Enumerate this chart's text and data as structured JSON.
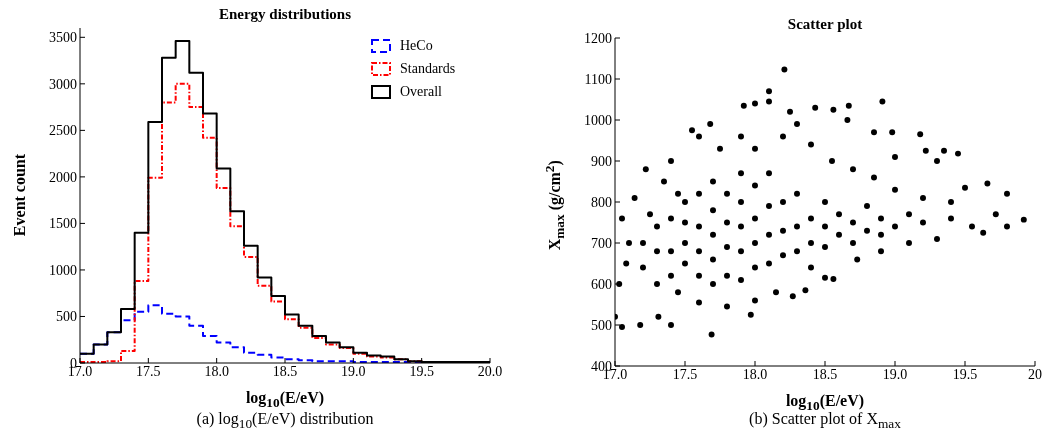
{
  "chart_data": [
    {
      "type": "histogram",
      "title": "Energy distributions",
      "xlabel": "log$_{10}$(E/eV)",
      "ylabel": "Event count",
      "bins": [
        17.0,
        17.1,
        17.2,
        17.3,
        17.4,
        17.5,
        17.6,
        17.7,
        17.8,
        17.9,
        18.0,
        18.1,
        18.2,
        18.3,
        18.4,
        18.5,
        18.6,
        18.7,
        18.8,
        18.9,
        19.0,
        19.1,
        19.2,
        19.3,
        19.4,
        19.5,
        19.6,
        19.7,
        19.8,
        19.9,
        20.0
      ],
      "series": [
        {
          "name": "HeCo",
          "color": "#0000ff",
          "line_style": "dashed",
          "values": [
            100,
            200,
            330,
            460,
            550,
            620,
            530,
            500,
            400,
            290,
            220,
            170,
            110,
            90,
            60,
            40,
            30,
            20,
            20,
            20,
            10,
            10,
            10,
            10,
            10,
            10,
            10,
            10,
            10,
            10
          ]
        },
        {
          "name": "Standards",
          "color": "#ff0000",
          "line_style": "dotted",
          "values": [
            10,
            10,
            20,
            130,
            880,
            1990,
            2800,
            3000,
            2750,
            2420,
            1880,
            1470,
            1140,
            830,
            660,
            470,
            380,
            270,
            200,
            160,
            100,
            70,
            60,
            40,
            20,
            10,
            10,
            10,
            10,
            10
          ]
        },
        {
          "name": "Overall",
          "color": "#000000",
          "line_style": "solid",
          "values": [
            100,
            200,
            330,
            580,
            1400,
            2590,
            3280,
            3460,
            3120,
            2680,
            2090,
            1630,
            1260,
            920,
            720,
            520,
            400,
            290,
            220,
            170,
            110,
            80,
            70,
            40,
            20,
            10,
            10,
            10,
            10,
            10
          ]
        }
      ],
      "xlim": [
        17.0,
        20.0
      ],
      "xticks": [
        {
          "value": 17.0,
          "label": "17.0"
        },
        {
          "value": 17.5,
          "label": "17.5"
        },
        {
          "value": 18.0,
          "label": "18.0"
        },
        {
          "value": 18.5,
          "label": "18.5"
        },
        {
          "value": 19.0,
          "label": "19.0"
        },
        {
          "value": 19.5,
          "label": "19.5"
        },
        {
          "value": 20.0,
          "label": "20.0"
        }
      ],
      "ylim": [
        0,
        3600
      ],
      "yticks": [
        0,
        500,
        1000,
        1500,
        2000,
        2500,
        3000,
        3500
      ],
      "legend": "top right",
      "grid": false,
      "annotations": [
        "(a) log$_{10}$(E/eV) distribution"
      ]
    },
    {
      "type": "scatter",
      "title": "Scatter plot",
      "xlabel": "log$_{10}$(E/eV)",
      "ylabel": "X$_{max}$  (g/cm$^{2}$)",
      "x": [
        17.69,
        17.05,
        17.18,
        17.4,
        17.97,
        17.31,
        17.0,
        17.22,
        17.55,
        17.68,
        17.92,
        18.0,
        18.1,
        18.1,
        18.21,
        18.43,
        18.56,
        18.67,
        18.91,
        18.98,
        18.85,
        19.18,
        19.22,
        19.35,
        19.45,
        19.66,
        19.8,
        19.92,
        19.8,
        19.63,
        19.72,
        19.5,
        19.4,
        19.3,
        19.0,
        18.66,
        18.25,
        18.3,
        18.27,
        18.36,
        18.5,
        18.56,
        18.4,
        18.73,
        18.9,
        19.1,
        19.3,
        19.55,
        17.03,
        17.08,
        17.1,
        17.05,
        17.14,
        17.25,
        17.35,
        17.4,
        17.45,
        17.6,
        17.8,
        18.0,
        18.15,
        17.6,
        17.75,
        17.9,
        18.0,
        18.2,
        18.4,
        18.55,
        18.7,
        18.85,
        19.0,
        19.2,
        19.4,
        17.5,
        17.5,
        17.5,
        17.5,
        17.6,
        17.6,
        17.6,
        17.6,
        17.7,
        17.7,
        17.7,
        17.7,
        17.7,
        17.8,
        17.8,
        17.8,
        17.8,
        17.9,
        17.9,
        17.9,
        17.9,
        17.9,
        18.0,
        18.0,
        18.0,
        18.0,
        18.1,
        18.1,
        18.1,
        18.1,
        18.2,
        18.2,
        18.2,
        18.3,
        18.3,
        18.3,
        18.4,
        18.4,
        18.5,
        18.5,
        18.5,
        18.6,
        18.6,
        18.7,
        18.7,
        18.8,
        18.8,
        18.9,
        18.9,
        19.0,
        19.1,
        19.2,
        17.3,
        17.3,
        17.3,
        17.2,
        17.2,
        17.4,
        17.4,
        17.4,
        17.45
      ],
      "series": [
        {
          "color": "#000000",
          "values": [
            477,
            495,
            500,
            500,
            525,
            520,
            520,
            880,
            975,
            990,
            1035,
            1040,
            1070,
            1045,
            1123,
            1030,
            1025,
            1035,
            1045,
            970,
            970,
            965,
            925,
            925,
            918,
            845,
            820,
            757,
            740,
            725,
            770,
            835,
            760,
            900,
            910,
            1000,
            1020,
            990,
            570,
            585,
            615,
            612,
            640,
            660,
            680,
            700,
            710,
            740,
            600,
            650,
            700,
            760,
            810,
            770,
            850,
            900,
            580,
            555,
            545,
            560,
            580,
            960,
            930,
            960,
            930,
            960,
            940,
            900,
            880,
            860,
            830,
            810,
            800,
            650,
            700,
            750,
            800,
            620,
            680,
            740,
            820,
            600,
            660,
            720,
            780,
            850,
            620,
            690,
            750,
            820,
            610,
            680,
            740,
            800,
            870,
            640,
            700,
            760,
            840,
            650,
            720,
            790,
            870,
            670,
            730,
            800,
            680,
            740,
            820,
            700,
            760,
            690,
            740,
            800,
            720,
            770,
            700,
            750,
            730,
            790,
            720,
            760,
            740,
            770,
            750,
            600,
            680,
            740,
            640,
            700,
            620,
            680,
            760,
            820
          ]
        }
      ],
      "marker": "circle",
      "xlim": [
        17.0,
        20.0
      ],
      "xticks": [
        {
          "value": 17.0,
          "label": "17.0"
        },
        {
          "value": 17.5,
          "label": "17.5"
        },
        {
          "value": 18.0,
          "label": "18.0"
        },
        {
          "value": 18.5,
          "label": "18.5"
        },
        {
          "value": 19.0,
          "label": "19.0"
        },
        {
          "value": 19.5,
          "label": "19.5"
        },
        {
          "value": 20.0,
          "label": "20"
        }
      ],
      "ylim": [
        400,
        1200
      ],
      "yticks": [
        400,
        500,
        600,
        700,
        800,
        900,
        1000,
        1100,
        1200
      ],
      "grid": false,
      "annotations": [
        "(b) Scatter plot of X$_{max}$"
      ]
    }
  ]
}
